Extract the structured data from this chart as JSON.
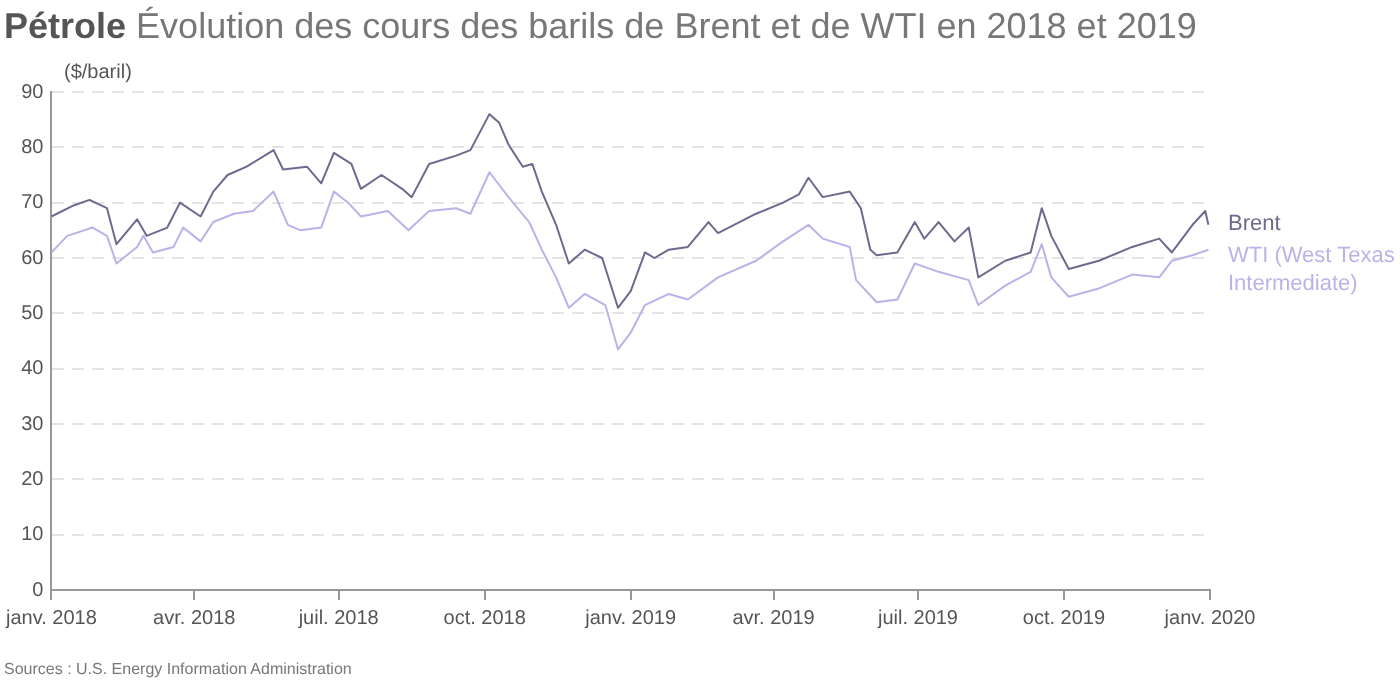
{
  "chart_data": {
    "type": "line",
    "title": "Pétrole",
    "subtitle": "Évolution des cours des barils de Brent et de WTI en 2018 et 2019",
    "ylabel": "($/baril)",
    "annotations": [
      "Sources : U.S. Energy Information Administration"
    ],
    "xlim": [
      "2018-01-01",
      "2020-01-01"
    ],
    "xticks": [
      {
        "value": "2018-01-01",
        "label": "janv. 2018"
      },
      {
        "value": "2018-04-01",
        "label": "avr. 2018"
      },
      {
        "value": "2018-07-01",
        "label": "juil. 2018"
      },
      {
        "value": "2018-10-01",
        "label": "oct. 2018"
      },
      {
        "value": "2019-01-01",
        "label": "janv. 2019"
      },
      {
        "value": "2019-04-01",
        "label": "avr. 2019"
      },
      {
        "value": "2019-07-01",
        "label": "juil. 2019"
      },
      {
        "value": "2019-10-01",
        "label": "oct. 2019"
      },
      {
        "value": "2020-01-01",
        "label": "janv. 2020"
      }
    ],
    "ylim": [
      0,
      90
    ],
    "yticks": [
      0,
      10,
      20,
      30,
      40,
      50,
      60,
      70,
      80,
      90
    ],
    "grid": "y",
    "legend": "right",
    "marker": "none",
    "line_style": "solid",
    "series": [
      {
        "name": "Brent",
        "color": "#6e6a8e",
        "x": [
          "2018-01-01",
          "2018-01-15",
          "2018-01-25",
          "2018-02-05",
          "2018-02-11",
          "2018-02-24",
          "2018-03-02",
          "2018-03-15",
          "2018-03-23",
          "2018-04-05",
          "2018-04-13",
          "2018-04-22",
          "2018-05-04",
          "2018-05-21",
          "2018-05-27",
          "2018-06-11",
          "2018-06-20",
          "2018-06-28",
          "2018-07-09",
          "2018-07-15",
          "2018-07-28",
          "2018-08-10",
          "2018-08-16",
          "2018-08-27",
          "2018-09-13",
          "2018-09-22",
          "2018-10-04",
          "2018-10-10",
          "2018-10-16",
          "2018-10-25",
          "2018-10-31",
          "2018-11-06",
          "2018-11-15",
          "2018-11-23",
          "2018-12-03",
          "2018-12-14",
          "2018-12-24",
          "2019-01-01",
          "2019-01-10",
          "2019-01-16",
          "2019-01-25",
          "2019-02-06",
          "2019-02-19",
          "2019-02-25",
          "2019-03-21",
          "2019-04-07",
          "2019-04-17",
          "2019-04-23",
          "2019-05-02",
          "2019-05-19",
          "2019-05-26",
          "2019-06-01",
          "2019-06-05",
          "2019-06-18",
          "2019-06-29",
          "2019-07-05",
          "2019-07-14",
          "2019-07-24",
          "2019-08-02",
          "2019-08-08",
          "2019-08-25",
          "2019-09-10",
          "2019-09-17",
          "2019-09-23",
          "2019-10-04",
          "2019-10-23",
          "2019-11-13",
          "2019-11-30",
          "2019-12-08",
          "2019-12-21",
          "2019-12-29",
          "2019-12-31"
        ],
        "values": [
          67.5,
          69.5,
          70.5,
          69,
          62.5,
          67,
          64,
          65.5,
          70,
          67.5,
          72,
          75,
          76.5,
          79.5,
          76,
          76.5,
          73.5,
          79,
          77,
          72.5,
          75,
          72.5,
          71,
          77,
          78.5,
          79.5,
          86,
          84.5,
          80.5,
          76.5,
          77,
          72,
          66,
          59,
          61.5,
          60,
          51,
          54,
          61,
          60,
          61.5,
          62,
          66.5,
          64.5,
          68,
          70,
          71.5,
          74.5,
          71,
          72,
          69,
          61.5,
          60.5,
          61,
          66.5,
          63.5,
          66.5,
          63,
          65.5,
          56.5,
          59.5,
          61,
          69,
          64,
          58,
          59.5,
          62,
          63.5,
          61,
          66,
          68.5,
          66
        ]
      },
      {
        "name": "WTI (West Texas Intermediate)",
        "color": "#b9b3e8",
        "x": [
          "2018-01-01",
          "2018-01-11",
          "2018-01-27",
          "2018-02-05",
          "2018-02-11",
          "2018-02-24",
          "2018-02-28",
          "2018-03-06",
          "2018-03-19",
          "2018-03-25",
          "2018-04-05",
          "2018-04-13",
          "2018-04-26",
          "2018-05-08",
          "2018-05-21",
          "2018-05-30",
          "2018-06-07",
          "2018-06-20",
          "2018-06-28",
          "2018-07-07",
          "2018-07-15",
          "2018-08-01",
          "2018-08-14",
          "2018-08-27",
          "2018-09-13",
          "2018-09-22",
          "2018-10-04",
          "2018-10-16",
          "2018-10-29",
          "2018-11-06",
          "2018-11-15",
          "2018-11-23",
          "2018-12-03",
          "2018-12-16",
          "2018-12-24",
          "2019-01-01",
          "2019-01-10",
          "2019-01-25",
          "2019-02-06",
          "2019-02-25",
          "2019-03-21",
          "2019-04-07",
          "2019-04-23",
          "2019-05-02",
          "2019-05-19",
          "2019-05-23",
          "2019-06-05",
          "2019-06-18",
          "2019-06-29",
          "2019-07-14",
          "2019-08-02",
          "2019-08-08",
          "2019-08-25",
          "2019-09-10",
          "2019-09-17",
          "2019-09-23",
          "2019-10-04",
          "2019-10-23",
          "2019-11-13",
          "2019-11-30",
          "2019-12-08",
          "2019-12-21",
          "2019-12-31"
        ],
        "values": [
          61,
          64,
          65.5,
          64,
          59,
          62,
          64,
          61,
          62,
          65.5,
          63,
          66.5,
          68,
          68.5,
          72,
          66,
          65,
          65.5,
          72,
          70,
          67.5,
          68.5,
          65,
          68.5,
          69,
          68,
          75.5,
          71,
          66.5,
          61.5,
          56.5,
          51,
          53.5,
          51.5,
          43.5,
          46.5,
          51.5,
          53.5,
          52.5,
          56.5,
          59.5,
          63,
          66,
          63.5,
          62,
          56,
          52,
          52.5,
          59,
          57.5,
          56,
          51.5,
          55,
          57.5,
          62.5,
          56.5,
          53,
          54.5,
          57,
          56.5,
          59.5,
          60.5,
          61.5
        ]
      }
    ]
  }
}
